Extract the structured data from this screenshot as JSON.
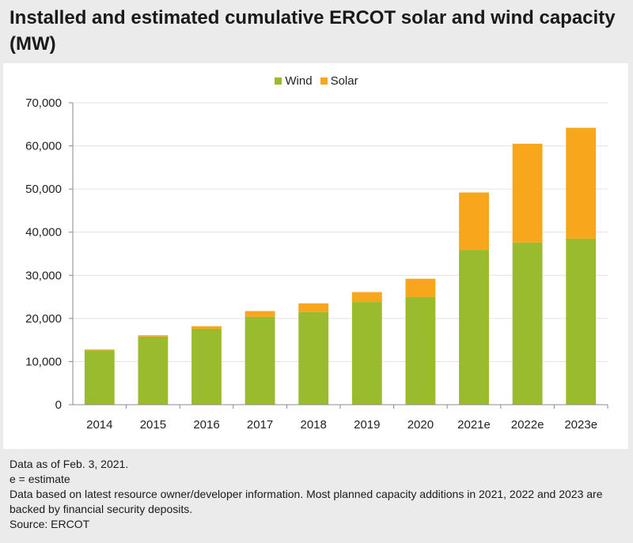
{
  "title": "Installed and estimated cumulative ERCOT solar and wind capacity (MW)",
  "colors": {
    "wind": "#9bbb2e",
    "solar": "#f8a71c"
  },
  "footnotes": {
    "line1": "Data as of Feb. 3, 2021.",
    "line2": "e = estimate",
    "line3": "Data based on latest resource owner/developer information. Most planned capacity additions in 2021, 2022 and 2023 are backed by financial security deposits.",
    "line4": "Source: ERCOT"
  },
  "chart_data": {
    "type": "bar",
    "stacked": true,
    "title": "Installed and estimated cumulative ERCOT solar and wind capacity (MW)",
    "xlabel": "",
    "ylabel": "",
    "categories": [
      "2014",
      "2015",
      "2016",
      "2017",
      "2018",
      "2019",
      "2020",
      "2021e",
      "2022e",
      "2023e"
    ],
    "series": [
      {
        "name": "Wind",
        "values": [
          12600,
          15800,
          17600,
          20400,
          21500,
          23800,
          25000,
          35900,
          37600,
          38500
        ]
      },
      {
        "name": "Solar",
        "values": [
          200,
          300,
          600,
          1300,
          2000,
          2300,
          4200,
          13300,
          22900,
          25700
        ]
      }
    ],
    "ylim": [
      0,
      70000
    ],
    "yticks": [
      0,
      10000,
      20000,
      30000,
      40000,
      50000,
      60000,
      70000
    ],
    "ytick_labels": [
      "0",
      "10,000",
      "20,000",
      "30,000",
      "40,000",
      "50,000",
      "60,000",
      "70,000"
    ],
    "grid": true,
    "legend": "top-center"
  }
}
